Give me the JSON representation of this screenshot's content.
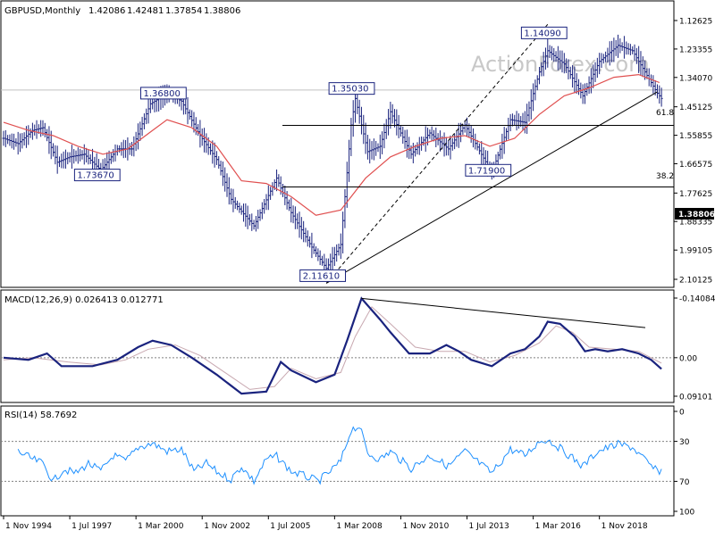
{
  "watermark": "ActionForex.com",
  "chart_data": [
    {
      "type": "ohlc",
      "panel": "price",
      "title": "GBPUSD,Monthly",
      "ohlc_readout": [
        "1.42086",
        "1.42481",
        "1.37854",
        "1.38806"
      ],
      "current_price": 1.38806,
      "current_price_label": "1.38806",
      "ylim": [
        1.2,
        2.14
      ],
      "y_ticks": [
        {
          "value": 2.10125,
          "label": "2.10125"
        },
        {
          "value": 1.99105,
          "label": "1.99105"
        },
        {
          "value": 1.88335,
          "label": "1.88335"
        },
        {
          "value": 1.77625,
          "label": "1.77625"
        },
        {
          "value": 1.66575,
          "label": "1.66575"
        },
        {
          "value": 1.55855,
          "label": "1.55855"
        },
        {
          "value": 1.45125,
          "label": "1.45125"
        },
        {
          "value": 1.3407,
          "label": "1.34070"
        },
        {
          "value": 1.23355,
          "label": "1.23355"
        },
        {
          "value": 1.12625,
          "label": "1.12625"
        }
      ],
      "fib_levels": [
        {
          "ratio_label": "61.8",
          "value": 1.7531
        },
        {
          "ratio_label": "38.2",
          "value": 1.5215
        }
      ],
      "swing_labels": [
        {
          "label": "2.11610",
          "date": "2007-11",
          "value": 2.1161,
          "side": "top"
        },
        {
          "label": "1.73670",
          "date": "1998-10",
          "value": 1.7367,
          "side": "top"
        },
        {
          "label": "1.36800",
          "date": "2001-06",
          "value": 1.368,
          "side": "bottom"
        },
        {
          "label": "1.35030",
          "date": "2009-01",
          "value": 1.3503,
          "side": "bottom"
        },
        {
          "label": "1.71900",
          "date": "2014-07",
          "value": 1.719,
          "side": "top"
        },
        {
          "label": "1.14090",
          "date": "2016-10",
          "value": 1.1409,
          "side": "bottom"
        }
      ],
      "trendlines": [
        {
          "style": "solid",
          "from": {
            "date": "2007-11",
            "value": 2.1161
          },
          "to": {
            "date": "2021-03",
            "value": 1.395
          }
        },
        {
          "style": "dashed",
          "from": {
            "date": "2007-11",
            "value": 2.1161
          },
          "to": {
            "date": "2016-10",
            "value": 1.1409
          }
        }
      ],
      "moving_average_color": "#e05050",
      "bar_color": "#1a237e",
      "moving_average_points": [
        {
          "date": "1994-11",
          "value": 1.51
        },
        {
          "date": "1995-11",
          "value": 1.54
        },
        {
          "date": "1996-11",
          "value": 1.56
        },
        {
          "date": "1997-11",
          "value": 1.6
        },
        {
          "date": "1998-11",
          "value": 1.63
        },
        {
          "date": "1999-11",
          "value": 1.61
        },
        {
          "date": "2000-11",
          "value": 1.54
        },
        {
          "date": "2001-06",
          "value": 1.5
        },
        {
          "date": "2002-06",
          "value": 1.53
        },
        {
          "date": "2003-06",
          "value": 1.6
        },
        {
          "date": "2004-06",
          "value": 1.73
        },
        {
          "date": "2005-06",
          "value": 1.74
        },
        {
          "date": "2006-06",
          "value": 1.79
        },
        {
          "date": "2007-06",
          "value": 1.86
        },
        {
          "date": "2008-06",
          "value": 1.84
        },
        {
          "date": "2009-06",
          "value": 1.72
        },
        {
          "date": "2010-06",
          "value": 1.64
        },
        {
          "date": "2011-06",
          "value": 1.6
        },
        {
          "date": "2012-06",
          "value": 1.57
        },
        {
          "date": "2013-06",
          "value": 1.56
        },
        {
          "date": "2014-06",
          "value": 1.6
        },
        {
          "date": "2015-06",
          "value": 1.57
        },
        {
          "date": "2016-06",
          "value": 1.48
        },
        {
          "date": "2017-06",
          "value": 1.41
        },
        {
          "date": "2018-06",
          "value": 1.38
        },
        {
          "date": "2019-06",
          "value": 1.34
        },
        {
          "date": "2020-06",
          "value": 1.33
        },
        {
          "date": "2021-04",
          "value": 1.36
        }
      ],
      "price_points": [
        {
          "date": "1994-11",
          "value": 1.57
        },
        {
          "date": "1995-06",
          "value": 1.59
        },
        {
          "date": "1996-01",
          "value": 1.54
        },
        {
          "date": "1996-06",
          "value": 1.53
        },
        {
          "date": "1997-01",
          "value": 1.66
        },
        {
          "date": "1997-07",
          "value": 1.64
        },
        {
          "date": "1998-02",
          "value": 1.63
        },
        {
          "date": "1998-10",
          "value": 1.69
        },
        {
          "date": "1999-06",
          "value": 1.61
        },
        {
          "date": "2000-01",
          "value": 1.61
        },
        {
          "date": "2000-10",
          "value": 1.44
        },
        {
          "date": "2001-06",
          "value": 1.4
        },
        {
          "date": "2002-01",
          "value": 1.43
        },
        {
          "date": "2002-10",
          "value": 1.56
        },
        {
          "date": "2003-06",
          "value": 1.65
        },
        {
          "date": "2004-01",
          "value": 1.8
        },
        {
          "date": "2004-12",
          "value": 1.9
        },
        {
          "date": "2005-11",
          "value": 1.72
        },
        {
          "date": "2006-06",
          "value": 1.85
        },
        {
          "date": "2007-04",
          "value": 1.98
        },
        {
          "date": "2007-11",
          "value": 2.06
        },
        {
          "date": "2008-06",
          "value": 1.97
        },
        {
          "date": "2008-11",
          "value": 1.52
        },
        {
          "date": "2009-01",
          "value": 1.42
        },
        {
          "date": "2009-07",
          "value": 1.62
        },
        {
          "date": "2010-01",
          "value": 1.6
        },
        {
          "date": "2010-06",
          "value": 1.47
        },
        {
          "date": "2011-04",
          "value": 1.63
        },
        {
          "date": "2012-01",
          "value": 1.55
        },
        {
          "date": "2012-10",
          "value": 1.61
        },
        {
          "date": "2013-06",
          "value": 1.52
        },
        {
          "date": "2014-07",
          "value": 1.7
        },
        {
          "date": "2015-04",
          "value": 1.5
        },
        {
          "date": "2015-11",
          "value": 1.51
        },
        {
          "date": "2016-06",
          "value": 1.32
        },
        {
          "date": "2016-10",
          "value": 1.24
        },
        {
          "date": "2017-06",
          "value": 1.29
        },
        {
          "date": "2018-03",
          "value": 1.41
        },
        {
          "date": "2018-11",
          "value": 1.28
        },
        {
          "date": "2019-08",
          "value": 1.22
        },
        {
          "date": "2020-03",
          "value": 1.24
        },
        {
          "date": "2020-12",
          "value": 1.36
        },
        {
          "date": "2021-03",
          "value": 1.4
        },
        {
          "date": "2021-05",
          "value": 1.42
        }
      ],
      "x_ticks": [
        "1 Nov 1994",
        "1 Jul 1997",
        "1 Mar 2000",
        "1 Nov 2002",
        "1 Jul 2005",
        "1 Mar 2008",
        "1 Nov 2010",
        "1 Jul 2013",
        "1 Mar 2016",
        "1 Nov 2018"
      ]
    },
    {
      "type": "line",
      "panel": "macd",
      "title": "MACD(12,26,9) 0.026413 0.012771",
      "ylim": [
        -0.1408,
        0.091
      ],
      "y_ticks": [
        {
          "value": 0.09101,
          "label": "0.09101"
        },
        {
          "value": 0.0,
          "label": "0.00"
        },
        {
          "value": -0.140843,
          "label": "-0.140843"
        }
      ],
      "main_color": "#1a237e",
      "signal_color": "#c8a8b0",
      "main_points": [
        {
          "date": "1994-11",
          "value": 0.0
        },
        {
          "date": "1995-11",
          "value": 0.005
        },
        {
          "date": "1996-08",
          "value": -0.01
        },
        {
          "date": "1997-03",
          "value": 0.02
        },
        {
          "date": "1998-06",
          "value": 0.02
        },
        {
          "date": "1999-06",
          "value": 0.005
        },
        {
          "date": "2000-04",
          "value": -0.025
        },
        {
          "date": "2000-11",
          "value": -0.04
        },
        {
          "date": "2001-08",
          "value": -0.03
        },
        {
          "date": "2002-06",
          "value": 0.0
        },
        {
          "date": "2003-06",
          "value": 0.04
        },
        {
          "date": "2004-06",
          "value": 0.085
        },
        {
          "date": "2005-06",
          "value": 0.08
        },
        {
          "date": "2006-01",
          "value": 0.01
        },
        {
          "date": "2006-06",
          "value": 0.03
        },
        {
          "date": "2007-06",
          "value": 0.058
        },
        {
          "date": "2008-03",
          "value": 0.04
        },
        {
          "date": "2008-09",
          "value": -0.04
        },
        {
          "date": "2009-04",
          "value": -0.14
        },
        {
          "date": "2010-01",
          "value": -0.09
        },
        {
          "date": "2010-06",
          "value": -0.06
        },
        {
          "date": "2011-03",
          "value": -0.01
        },
        {
          "date": "2012-01",
          "value": -0.01
        },
        {
          "date": "2012-09",
          "value": -0.03
        },
        {
          "date": "2013-03",
          "value": -0.015
        },
        {
          "date": "2013-09",
          "value": 0.005
        },
        {
          "date": "2014-07",
          "value": 0.02
        },
        {
          "date": "2015-04",
          "value": -0.01
        },
        {
          "date": "2015-11",
          "value": -0.02
        },
        {
          "date": "2016-06",
          "value": -0.05
        },
        {
          "date": "2016-10",
          "value": -0.085
        },
        {
          "date": "2017-04",
          "value": -0.08
        },
        {
          "date": "2017-11",
          "value": -0.05
        },
        {
          "date": "2018-04",
          "value": -0.015
        },
        {
          "date": "2018-09",
          "value": -0.02
        },
        {
          "date": "2019-03",
          "value": -0.015
        },
        {
          "date": "2019-10",
          "value": -0.02
        },
        {
          "date": "2020-06",
          "value": -0.01
        },
        {
          "date": "2020-12",
          "value": 0.005
        },
        {
          "date": "2021-05",
          "value": 0.026413
        }
      ],
      "signal_points": [
        {
          "date": "1994-11",
          "value": 0.005
        },
        {
          "date": "1996-01",
          "value": 0.0
        },
        {
          "date": "1997-06",
          "value": 0.01
        },
        {
          "date": "1998-10",
          "value": 0.017
        },
        {
          "date": "1999-10",
          "value": 0.005
        },
        {
          "date": "2000-09",
          "value": -0.02
        },
        {
          "date": "2001-10",
          "value": -0.03
        },
        {
          "date": "2002-10",
          "value": -0.005
        },
        {
          "date": "2003-10",
          "value": 0.035
        },
        {
          "date": "2004-10",
          "value": 0.075
        },
        {
          "date": "2005-10",
          "value": 0.068
        },
        {
          "date": "2006-06",
          "value": 0.025
        },
        {
          "date": "2007-06",
          "value": 0.05
        },
        {
          "date": "2008-06",
          "value": 0.035
        },
        {
          "date": "2009-01",
          "value": -0.05
        },
        {
          "date": "2009-09",
          "value": -0.12
        },
        {
          "date": "2010-06",
          "value": -0.08
        },
        {
          "date": "2011-06",
          "value": -0.025
        },
        {
          "date": "2012-06",
          "value": -0.015
        },
        {
          "date": "2013-06",
          "value": -0.015
        },
        {
          "date": "2014-06",
          "value": 0.01
        },
        {
          "date": "2015-06",
          "value": -0.005
        },
        {
          "date": "2016-06",
          "value": -0.035
        },
        {
          "date": "2017-02",
          "value": -0.075
        },
        {
          "date": "2017-10",
          "value": -0.06
        },
        {
          "date": "2018-06",
          "value": -0.025
        },
        {
          "date": "2019-06",
          "value": -0.02
        },
        {
          "date": "2020-06",
          "value": -0.015
        },
        {
          "date": "2021-05",
          "value": 0.012771
        }
      ],
      "trendline": {
        "from": {
          "date": "2009-04",
          "value": -0.14
        },
        "to": {
          "date": "2025-01",
          "value": -0.045
        }
      }
    },
    {
      "type": "line",
      "panel": "rsi",
      "title": "RSI(14) 58.7692",
      "ylim": [
        0,
        100
      ],
      "y_ticks": [
        {
          "value": 100,
          "label": "100"
        },
        {
          "value": 70,
          "label": "70"
        },
        {
          "value": 30,
          "label": "30"
        },
        {
          "value": 0,
          "label": "0"
        }
      ],
      "line_color": "#1e90ff",
      "points": [
        {
          "date": "1995-06",
          "value": 40
        },
        {
          "date": "1996-01",
          "value": 48
        },
        {
          "date": "1996-06",
          "value": 52
        },
        {
          "date": "1996-11",
          "value": 70
        },
        {
          "date": "1997-04",
          "value": 58
        },
        {
          "date": "1997-10",
          "value": 62
        },
        {
          "date": "1998-04",
          "value": 52
        },
        {
          "date": "1998-10",
          "value": 60
        },
        {
          "date": "1999-04",
          "value": 44
        },
        {
          "date": "1999-10",
          "value": 50
        },
        {
          "date": "2000-04",
          "value": 36
        },
        {
          "date": "2000-11",
          "value": 32
        },
        {
          "date": "2001-06",
          "value": 40
        },
        {
          "date": "2002-01",
          "value": 38
        },
        {
          "date": "2002-07",
          "value": 60
        },
        {
          "date": "2003-01",
          "value": 52
        },
        {
          "date": "2003-07",
          "value": 62
        },
        {
          "date": "2004-01",
          "value": 68
        },
        {
          "date": "2004-06",
          "value": 55
        },
        {
          "date": "2004-12",
          "value": 70
        },
        {
          "date": "2005-06",
          "value": 48
        },
        {
          "date": "2005-11",
          "value": 45
        },
        {
          "date": "2006-06",
          "value": 60
        },
        {
          "date": "2007-01",
          "value": 65
        },
        {
          "date": "2007-07",
          "value": 70
        },
        {
          "date": "2008-01",
          "value": 60
        },
        {
          "date": "2008-06",
          "value": 50
        },
        {
          "date": "2008-11",
          "value": 18
        },
        {
          "date": "2009-03",
          "value": 15
        },
        {
          "date": "2009-07",
          "value": 42
        },
        {
          "date": "2010-01",
          "value": 48
        },
        {
          "date": "2010-06",
          "value": 40
        },
        {
          "date": "2011-04",
          "value": 57
        },
        {
          "date": "2012-01",
          "value": 44
        },
        {
          "date": "2012-10",
          "value": 55
        },
        {
          "date": "2013-06",
          "value": 40
        },
        {
          "date": "2014-07",
          "value": 62
        },
        {
          "date": "2015-04",
          "value": 38
        },
        {
          "date": "2015-11",
          "value": 44
        },
        {
          "date": "2016-06",
          "value": 30
        },
        {
          "date": "2016-10",
          "value": 28
        },
        {
          "date": "2017-06",
          "value": 40
        },
        {
          "date": "2018-03",
          "value": 55
        },
        {
          "date": "2018-10",
          "value": 40
        },
        {
          "date": "2019-08",
          "value": 33
        },
        {
          "date": "2020-03",
          "value": 36
        },
        {
          "date": "2020-12",
          "value": 55
        },
        {
          "date": "2021-03",
          "value": 60
        },
        {
          "date": "2021-05",
          "value": 58.7692
        }
      ]
    }
  ]
}
